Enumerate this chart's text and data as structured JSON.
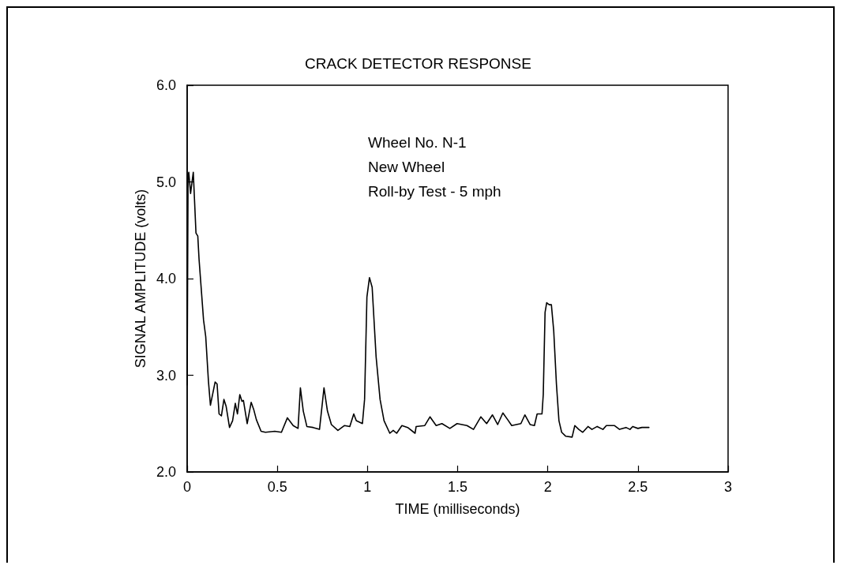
{
  "chart_data": {
    "type": "line",
    "title": "CRACK DETECTOR RESPONSE",
    "xlabel": "TIME (milliseconds)",
    "ylabel": "SIGNAL AMPLITUDE (volts)",
    "annotations": [
      "Wheel No. N-1",
      "New Wheel",
      "Roll-by Test - 5 mph"
    ],
    "x": [
      0,
      0.005,
      0.009,
      0.019,
      0.027,
      0.034,
      0.049,
      0.059,
      0.066,
      0.091,
      0.103,
      0.118,
      0.129,
      0.155,
      0.166,
      0.177,
      0.19,
      0.204,
      0.216,
      0.235,
      0.252,
      0.267,
      0.279,
      0.292,
      0.304,
      0.312,
      0.333,
      0.355,
      0.37,
      0.384,
      0.41,
      0.434,
      0.486,
      0.523,
      0.556,
      0.588,
      0.615,
      0.628,
      0.644,
      0.664,
      0.698,
      0.734,
      0.759,
      0.778,
      0.8,
      0.836,
      0.873,
      0.902,
      0.924,
      0.938,
      0.972,
      0.984,
      0.997,
      1.011,
      1.026,
      1.048,
      1.07,
      1.092,
      1.124,
      1.143,
      1.162,
      1.191,
      1.223,
      1.264,
      1.27,
      1.318,
      1.347,
      1.381,
      1.413,
      1.457,
      1.497,
      1.552,
      1.588,
      1.629,
      1.661,
      1.693,
      1.722,
      1.751,
      1.778,
      1.8,
      1.851,
      1.873,
      1.902,
      1.926,
      1.941,
      1.968,
      1.975,
      1.985,
      1.994,
      2.008,
      2.02,
      2.033,
      2.048,
      2.062,
      2.077,
      2.099,
      2.135,
      2.15,
      2.172,
      2.194,
      2.223,
      2.245,
      2.274,
      2.306,
      2.325,
      2.369,
      2.398,
      2.434,
      2.456,
      2.471,
      2.5,
      2.522,
      2.561
    ],
    "values": [
      2.9,
      5.05,
      5.1,
      4.88,
      5.0,
      5.1,
      4.47,
      4.44,
      4.2,
      3.57,
      3.4,
      2.94,
      2.69,
      2.93,
      2.91,
      2.6,
      2.58,
      2.75,
      2.68,
      2.46,
      2.53,
      2.71,
      2.6,
      2.8,
      2.73,
      2.74,
      2.5,
      2.72,
      2.64,
      2.54,
      2.42,
      2.41,
      2.42,
      2.41,
      2.56,
      2.48,
      2.45,
      2.87,
      2.63,
      2.47,
      2.46,
      2.44,
      2.87,
      2.63,
      2.49,
      2.43,
      2.48,
      2.47,
      2.6,
      2.53,
      2.5,
      2.75,
      3.81,
      4.01,
      3.91,
      3.19,
      2.75,
      2.53,
      2.4,
      2.43,
      2.4,
      2.48,
      2.46,
      2.4,
      2.47,
      2.48,
      2.57,
      2.48,
      2.5,
      2.45,
      2.5,
      2.48,
      2.44,
      2.57,
      2.5,
      2.59,
      2.49,
      2.61,
      2.54,
      2.48,
      2.5,
      2.59,
      2.49,
      2.48,
      2.6,
      2.6,
      2.8,
      3.65,
      3.75,
      3.73,
      3.73,
      3.46,
      2.91,
      2.53,
      2.41,
      2.37,
      2.36,
      2.48,
      2.44,
      2.41,
      2.47,
      2.44,
      2.47,
      2.44,
      2.48,
      2.48,
      2.44,
      2.46,
      2.44,
      2.47,
      2.45,
      2.46,
      2.46
    ],
    "color": "#000000",
    "marker": "none",
    "line_style": "solid",
    "xlim": [
      0,
      3
    ],
    "xticks": [
      0,
      0.5,
      1,
      1.5,
      2,
      2.5,
      3
    ],
    "ylim": [
      2,
      6
    ],
    "yticks": [
      {
        "value": 2,
        "label": "2.0"
      },
      {
        "value": 3,
        "label": "3.0"
      },
      {
        "value": 4,
        "label": "4.0"
      },
      {
        "value": 5,
        "label": "5.0"
      },
      {
        "value": 6,
        "label": "6.0"
      }
    ]
  }
}
